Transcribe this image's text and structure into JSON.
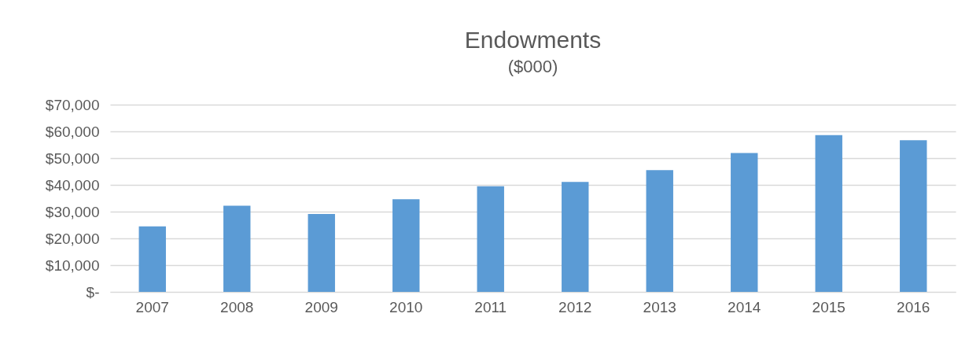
{
  "chart_data": {
    "type": "bar",
    "title": "Endowments",
    "subtitle": "($000)",
    "categories": [
      "2007",
      "2008",
      "2009",
      "2010",
      "2011",
      "2012",
      "2013",
      "2014",
      "2015",
      "2016"
    ],
    "values": [
      24500,
      32200,
      29100,
      34600,
      39500,
      41100,
      45500,
      51900,
      58600,
      56700
    ],
    "color": "#5b9bd5",
    "ylim": [
      0,
      70000
    ],
    "yticks": [
      {
        "value": 0,
        "label": "$-"
      },
      {
        "value": 10000,
        "label": "$10,000"
      },
      {
        "value": 20000,
        "label": "$20,000"
      },
      {
        "value": 30000,
        "label": "$30,000"
      },
      {
        "value": 40000,
        "label": "$40,000"
      },
      {
        "value": 50000,
        "label": "$50,000"
      },
      {
        "value": 60000,
        "label": "$60,000"
      },
      {
        "value": 70000,
        "label": "$70,000"
      }
    ],
    "grid": "y"
  }
}
